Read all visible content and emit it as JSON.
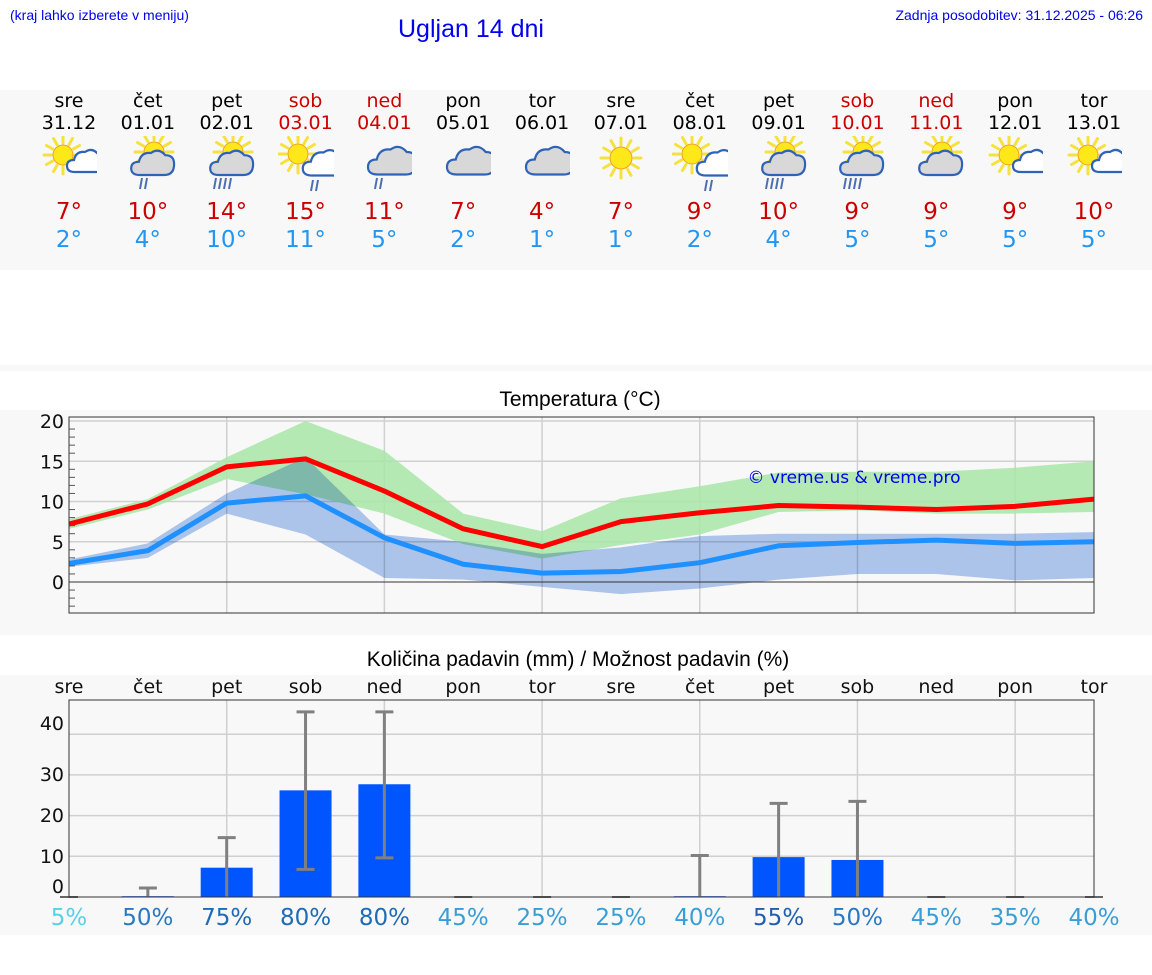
{
  "header": {
    "menu_hint": "(kraj lahko izberete v meniju)",
    "title": "Ugljan 14 dni",
    "last_update": "Zadnja posodobitev: 31.12.2025 - 06:26"
  },
  "colors": {
    "link_blue": "#0000ee",
    "max_temp": "#cc0000",
    "min_temp": "#2196f3",
    "weekend": "#cc0000",
    "max_line": "#ff0000",
    "min_line": "#1e90ff",
    "max_band": "#a8e6a8",
    "min_band": "#a8c4f0",
    "precip_bar": "#0055ff",
    "error_bar": "#808080"
  },
  "days": [
    {
      "dow": "sre",
      "date": "31.12",
      "weekend": false,
      "icon": "sun-cloud-icon",
      "tmax": "7°",
      "tmin": "2°"
    },
    {
      "dow": "čet",
      "date": "01.01",
      "weekend": false,
      "icon": "sun-cloud-rain-icon",
      "tmax": "10°",
      "tmin": "4°"
    },
    {
      "dow": "pet",
      "date": "02.01",
      "weekend": false,
      "icon": "sun-cloud-heavy-rain-icon",
      "tmax": "14°",
      "tmin": "10°"
    },
    {
      "dow": "sob",
      "date": "03.01",
      "weekend": true,
      "icon": "sun-big-cloud-rain-icon",
      "tmax": "15°",
      "tmin": "11°"
    },
    {
      "dow": "ned",
      "date": "04.01",
      "weekend": true,
      "icon": "overcast-rain-icon",
      "tmax": "11°",
      "tmin": "5°"
    },
    {
      "dow": "pon",
      "date": "05.01",
      "weekend": false,
      "icon": "overcast-icon",
      "tmax": "7°",
      "tmin": "2°"
    },
    {
      "dow": "tor",
      "date": "06.01",
      "weekend": false,
      "icon": "overcast-icon",
      "tmax": "4°",
      "tmin": "1°"
    },
    {
      "dow": "sre",
      "date": "07.01",
      "weekend": false,
      "icon": "sun-icon",
      "tmax": "7°",
      "tmin": "1°"
    },
    {
      "dow": "čet",
      "date": "08.01",
      "weekend": false,
      "icon": "sun-big-cloud-rain-icon",
      "tmax": "9°",
      "tmin": "2°"
    },
    {
      "dow": "pet",
      "date": "09.01",
      "weekend": false,
      "icon": "sun-cloud-heavy-rain-icon",
      "tmax": "10°",
      "tmin": "4°"
    },
    {
      "dow": "sob",
      "date": "10.01",
      "weekend": true,
      "icon": "sun-cloud-heavy-rain-icon",
      "tmax": "9°",
      "tmin": "5°"
    },
    {
      "dow": "ned",
      "date": "11.01",
      "weekend": true,
      "icon": "sun-grey-cloud-icon",
      "tmax": "9°",
      "tmin": "5°"
    },
    {
      "dow": "pon",
      "date": "12.01",
      "weekend": false,
      "icon": "sun-cloud-icon",
      "tmax": "9°",
      "tmin": "5°"
    },
    {
      "dow": "tor",
      "date": "13.01",
      "weekend": false,
      "icon": "sun-cloud-icon",
      "tmax": "10°",
      "tmin": "5°"
    }
  ],
  "temp_chart": {
    "title": "Temperatura (°C)",
    "watermark": "© vreme.us & vreme.pro",
    "yticks": [
      "20",
      "15",
      "10",
      "5",
      "0"
    ]
  },
  "precip_chart": {
    "title": "Količina padavin (mm) / Možnost padavin (%)",
    "yticks": [
      "40",
      "30",
      "20",
      "10",
      "0"
    ],
    "day_labels": [
      "sre",
      "čet",
      "pet",
      "sob",
      "ned",
      "pon",
      "tor",
      "sre",
      "čet",
      "pet",
      "sob",
      "ned",
      "pon",
      "tor"
    ],
    "probabilities": [
      "5%",
      "50%",
      "75%",
      "80%",
      "80%",
      "45%",
      "25%",
      "25%",
      "40%",
      "55%",
      "50%",
      "45%",
      "35%",
      "40%"
    ]
  },
  "chart_data": [
    {
      "type": "line",
      "title": "Temperatura (°C)",
      "xlabel": "",
      "ylabel": "°C",
      "ylim": [
        -4,
        20
      ],
      "grid": true,
      "categories": [
        "31.12",
        "01.01",
        "02.01",
        "03.01",
        "04.01",
        "05.01",
        "06.01",
        "07.01",
        "08.01",
        "09.01",
        "10.01",
        "11.01",
        "12.01",
        "13.01"
      ],
      "series": [
        {
          "name": "Max temperature",
          "color": "#ff0000",
          "values": [
            7.2,
            9.7,
            14.3,
            15.3,
            11.3,
            6.6,
            4.4,
            7.5,
            8.6,
            9.5,
            9.3,
            9.0,
            9.4,
            10.3
          ]
        },
        {
          "name": "Max range high",
          "values": [
            7.8,
            10.3,
            15.5,
            20.0,
            16.3,
            8.5,
            6.3,
            10.4,
            11.9,
            13.6,
            13.7,
            13.7,
            14.2,
            15.0
          ]
        },
        {
          "name": "Max range low",
          "values": [
            6.6,
            9.0,
            12.8,
            10.9,
            8.5,
            4.7,
            2.9,
            4.6,
            5.9,
            8.7,
            8.9,
            8.5,
            8.5,
            8.7
          ]
        },
        {
          "name": "Min temperature",
          "color": "#1e90ff",
          "values": [
            2.3,
            3.9,
            9.8,
            10.7,
            5.5,
            2.2,
            1.1,
            1.3,
            2.4,
            4.5,
            4.9,
            5.2,
            4.8,
            5.0
          ]
        },
        {
          "name": "Min range high",
          "values": [
            2.8,
            4.8,
            11.0,
            15.5,
            5.9,
            5.0,
            3.5,
            4.3,
            5.7,
            6.0,
            6.0,
            6.0,
            6.0,
            6.2
          ]
        },
        {
          "name": "Min range low",
          "values": [
            1.9,
            3.0,
            8.5,
            5.9,
            0.5,
            0.3,
            -0.6,
            -1.5,
            -0.8,
            0.3,
            1.0,
            1.0,
            0.2,
            0.5
          ]
        }
      ]
    },
    {
      "type": "bar",
      "title": "Količina padavin (mm) / Možnost padavin (%)",
      "xlabel": "",
      "ylabel": "mm",
      "ylim": [
        0,
        48
      ],
      "grid": true,
      "categories": [
        "sre",
        "čet",
        "pet",
        "sob",
        "ned",
        "pon",
        "tor",
        "sre",
        "čet",
        "pet",
        "sob",
        "ned",
        "pon",
        "tor"
      ],
      "series": [
        {
          "name": "Precipitation (mm)",
          "color": "#0055ff",
          "values": [
            0,
            0.2,
            7.2,
            26.2,
            27.7,
            0,
            0,
            0,
            0.2,
            9.8,
            9.1,
            0,
            0,
            0
          ]
        },
        {
          "name": "Error low (mm)",
          "values": [
            0,
            0,
            0,
            6.8,
            9.6,
            0,
            0,
            0,
            0,
            0,
            0,
            0,
            0,
            0
          ]
        },
        {
          "name": "Error high (mm)",
          "values": [
            0,
            2.2,
            14.6,
            45.5,
            45.5,
            0,
            0,
            0,
            10.2,
            23.0,
            23.5,
            0,
            0,
            0
          ]
        },
        {
          "name": "Probability (%)",
          "values": [
            5,
            50,
            75,
            80,
            80,
            45,
            25,
            25,
            40,
            55,
            50,
            45,
            35,
            40
          ]
        }
      ]
    }
  ]
}
